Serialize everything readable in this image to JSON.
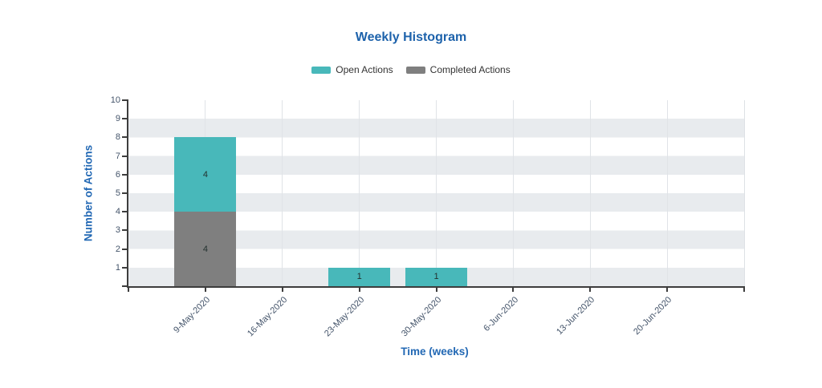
{
  "title": "Weekly Histogram",
  "xlabel": "Time (weeks)",
  "ylabel": "Number of Actions",
  "legend": [
    {
      "label": "Open Actions",
      "color": "#48b8ba"
    },
    {
      "label": "Completed Actions",
      "color": "#7f7f7f"
    }
  ],
  "colors": {
    "open_actions": "#48b8ba",
    "completed_actions": "#7f7f7f",
    "title_blue": "#1d62ab",
    "axis_title_blue": "#2268b4",
    "tick_label": "#44546a",
    "band_gray": "#e8ebee",
    "axis_line": "#3d3d3d"
  },
  "chart_data": {
    "type": "bar",
    "stacked": true,
    "title": "Weekly Histogram",
    "xlabel": "Time (weeks)",
    "ylabel": "Number of Actions",
    "categories": [
      "9-May-2020",
      "16-May-2020",
      "23-May-2020",
      "30-May-2020",
      "6-Jun-2020",
      "13-Jun-2020",
      "20-Jun-2020"
    ],
    "series": [
      {
        "name": "Open Actions",
        "color": "#48b8ba",
        "values": [
          4,
          0,
          1,
          1,
          0,
          0,
          0
        ]
      },
      {
        "name": "Completed Actions",
        "color": "#7f7f7f",
        "values": [
          4,
          0,
          0,
          0,
          0,
          0,
          0
        ]
      }
    ],
    "stack_order_bottom_to_top": [
      "Completed Actions",
      "Open Actions"
    ],
    "bar_value_labels": true,
    "ylim": [
      0,
      10
    ],
    "ytick_labels": [
      1,
      2,
      3,
      4,
      5,
      6,
      7,
      8,
      9,
      10
    ],
    "grid": "horizontal-bands-and-vertical-lines",
    "legend_position": "top-center",
    "x_label_rotation_deg": -45
  }
}
